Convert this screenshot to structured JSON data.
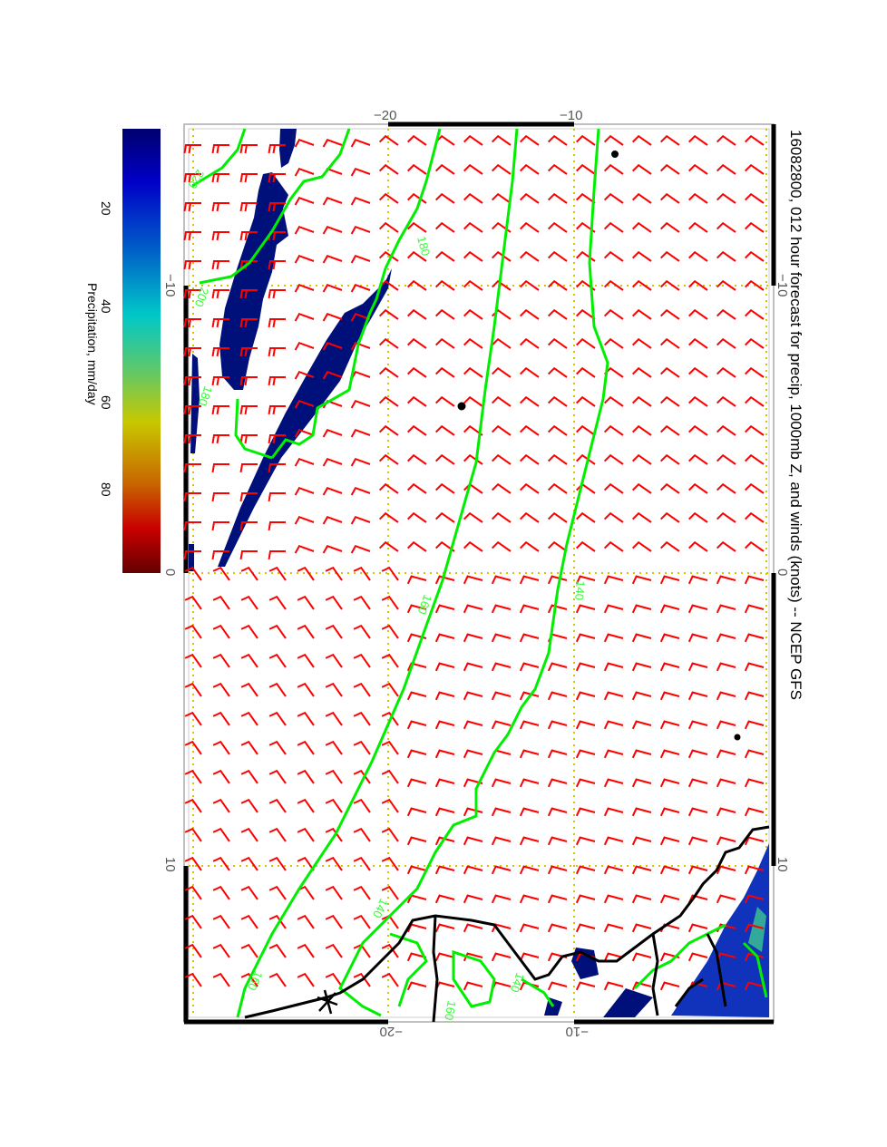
{
  "title": "16082800, 012 hour forecast for precip, 1000mb Z, and winds (knots) -- NCEP GFS",
  "axes": {
    "top": [
      "−20",
      "−10"
    ],
    "bottom": [
      "−20",
      "−10"
    ],
    "left": [
      "−10",
      "0",
      "10"
    ],
    "right": [
      "−10",
      "0",
      "10"
    ]
  },
  "colorbar": {
    "label": "Precipitation, mm/day",
    "ticks": [
      "20",
      "40",
      "60",
      "80"
    ],
    "range": [
      0,
      100
    ],
    "colors": [
      "#00006e",
      "#0000c8",
      "#0064c8",
      "#00c8c8",
      "#64c864",
      "#c8c800",
      "#c86400",
      "#c80000",
      "#640000"
    ]
  },
  "contour_labels": [
    "220",
    "200",
    "180",
    "180",
    "160",
    "140",
    "160",
    "140",
    "140",
    "160"
  ],
  "colors": {
    "contour": "#00ee00",
    "wind": "#ff0000",
    "coast": "#000000",
    "grid": "#cccc00"
  }
}
